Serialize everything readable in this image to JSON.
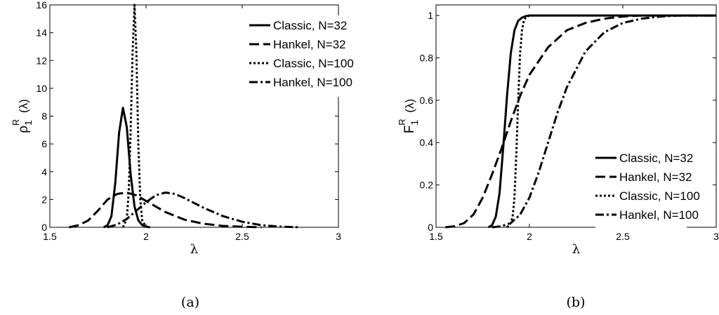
{
  "chart_data": [
    {
      "type": "line",
      "xlabel": "λ",
      "ylabel_base": "ρ",
      "ylabel_sub": "1",
      "ylabel_sup": "R",
      "ylabel_arg": "(λ)",
      "caption": "(a)",
      "xlim": [
        1.5,
        3
      ],
      "ylim": [
        0,
        16
      ],
      "xticks": [
        "1.5",
        "2",
        "2.5",
        "3"
      ],
      "yticks": [
        "0",
        "2",
        "4",
        "6",
        "8",
        "10",
        "12",
        "14",
        "16"
      ],
      "legend_position": "top-right",
      "series": [
        {
          "name": "Classic, N=32",
          "style": "solid",
          "x": [
            1.78,
            1.8,
            1.82,
            1.84,
            1.86,
            1.88,
            1.9,
            1.92,
            1.94,
            1.96,
            1.98,
            2.0,
            2.02
          ],
          "y": [
            0,
            0.15,
            0.8,
            3.2,
            6.8,
            8.6,
            7.2,
            3.8,
            1.5,
            0.5,
            0.15,
            0.05,
            0
          ]
        },
        {
          "name": "Hankel, N=32",
          "style": "dashed",
          "x": [
            1.6,
            1.65,
            1.7,
            1.75,
            1.8,
            1.85,
            1.9,
            1.95,
            2.0,
            2.1,
            2.2,
            2.3,
            2.4,
            2.5,
            2.6
          ],
          "y": [
            0,
            0.15,
            0.5,
            1.2,
            2.0,
            2.4,
            2.5,
            2.3,
            1.9,
            1.1,
            0.55,
            0.25,
            0.1,
            0.04,
            0
          ]
        },
        {
          "name": "Classic, N=100",
          "style": "dotted",
          "x": [
            1.88,
            1.9,
            1.91,
            1.92,
            1.93,
            1.94,
            1.95,
            1.96,
            1.97,
            1.98,
            2.0
          ],
          "y": [
            0,
            0.6,
            2.5,
            7.0,
            12.5,
            16.0,
            12.5,
            6.0,
            2.0,
            0.5,
            0
          ]
        },
        {
          "name": "Hankel, N=100",
          "style": "dashdot",
          "x": [
            1.8,
            1.85,
            1.9,
            1.95,
            2.0,
            2.05,
            2.1,
            2.15,
            2.2,
            2.3,
            2.4,
            2.5,
            2.6,
            2.7,
            2.8
          ],
          "y": [
            0,
            0.2,
            0.6,
            1.2,
            1.8,
            2.3,
            2.5,
            2.4,
            2.1,
            1.4,
            0.8,
            0.4,
            0.15,
            0.05,
            0
          ]
        }
      ]
    },
    {
      "type": "line",
      "xlabel": "λ",
      "ylabel_base": "F",
      "ylabel_sub": "1",
      "ylabel_sup": "R",
      "ylabel_arg": "(λ)",
      "caption": "(b)",
      "xlim": [
        1.5,
        3
      ],
      "ylim": [
        0,
        1.05
      ],
      "xticks": [
        "1.5",
        "2",
        "2.5",
        "3"
      ],
      "yticks": [
        "0",
        "0.2",
        "0.4",
        "0.6",
        "0.8",
        "1"
      ],
      "legend_position": "bottom-right",
      "series": [
        {
          "name": "Classic, N=32",
          "style": "solid",
          "x": [
            1.78,
            1.8,
            1.82,
            1.84,
            1.86,
            1.88,
            1.9,
            1.92,
            1.94,
            1.96,
            1.98,
            2.0,
            2.05,
            3.0
          ],
          "y": [
            0,
            0.01,
            0.05,
            0.16,
            0.38,
            0.62,
            0.82,
            0.93,
            0.975,
            0.99,
            0.997,
            1.0,
            1.0,
            1.0
          ]
        },
        {
          "name": "Hankel, N=32",
          "style": "dashed",
          "x": [
            1.55,
            1.6,
            1.65,
            1.7,
            1.75,
            1.8,
            1.85,
            1.9,
            1.95,
            2.0,
            2.1,
            2.2,
            2.3,
            2.4,
            2.5,
            2.6,
            3.0
          ],
          "y": [
            0,
            0.005,
            0.02,
            0.06,
            0.14,
            0.25,
            0.37,
            0.5,
            0.62,
            0.72,
            0.85,
            0.93,
            0.965,
            0.985,
            0.995,
            1.0,
            1.0
          ]
        },
        {
          "name": "Classic, N=100",
          "style": "dotted",
          "x": [
            1.88,
            1.9,
            1.91,
            1.92,
            1.93,
            1.94,
            1.95,
            1.96,
            1.97,
            1.98,
            2.0,
            3.0
          ],
          "y": [
            0,
            0.02,
            0.05,
            0.14,
            0.35,
            0.6,
            0.82,
            0.93,
            0.975,
            0.99,
            1.0,
            1.0
          ]
        },
        {
          "name": "Hankel, N=100",
          "style": "dashdot",
          "x": [
            1.8,
            1.85,
            1.9,
            1.95,
            2.0,
            2.05,
            2.1,
            2.15,
            2.2,
            2.3,
            2.4,
            2.5,
            2.6,
            2.7,
            2.8,
            3.0
          ],
          "y": [
            0,
            0.005,
            0.02,
            0.06,
            0.14,
            0.26,
            0.4,
            0.54,
            0.66,
            0.83,
            0.92,
            0.965,
            0.985,
            0.995,
            1.0,
            1.0
          ]
        }
      ]
    }
  ]
}
